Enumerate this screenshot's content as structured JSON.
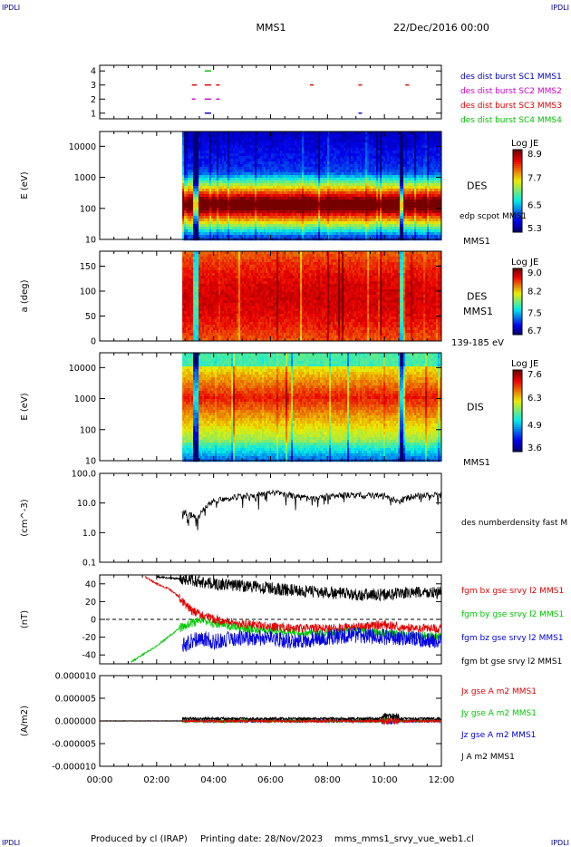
{
  "header": {
    "corner_left_top": "IPDLI",
    "corner_right_top": "IPDLI",
    "corner_left_bottom": "IPDLI",
    "corner_right_bottom": "IPDLI",
    "spacecraft": "MMS1",
    "date": "22/Dec/2016 00:00"
  },
  "footer": {
    "produced": "Produced by cl (IRAP)",
    "printing": "Printing date: 28/Nov/2023",
    "file": "mms_mms1_srvy_vue_web1.cl"
  },
  "chart_data": [
    {
      "type": "scatter",
      "id": "burst",
      "ylim": [
        0.6,
        4.4
      ],
      "yticks": [
        "1",
        "2",
        "3",
        "4"
      ],
      "legend": [
        {
          "name": "des dist burst SC1 MMS1",
          "color": "#0000c8"
        },
        {
          "name": "des dist burst SC2 MMS2",
          "color": "#d000d0"
        },
        {
          "name": "des dist burst SC3 MMS3",
          "color": "#e00000"
        },
        {
          "name": "des dist burst SC4 MMS4",
          "color": "#00c000"
        }
      ],
      "marks": [
        {
          "y": 4,
          "t": [
            3.75,
            3.85
          ],
          "color": "#00c000"
        },
        {
          "y": 3,
          "t": [
            3.3,
            3.35,
            3.75,
            3.85,
            4.15,
            7.45,
            9.15,
            10.8
          ],
          "color": "#e00000"
        },
        {
          "y": 2,
          "t": [
            3.3,
            3.75,
            3.85,
            4.15
          ],
          "color": "#d000d0"
        },
        {
          "y": 1,
          "t": [
            3.75,
            3.85,
            9.15
          ],
          "color": "#0000c8"
        }
      ]
    },
    {
      "type": "heatmap",
      "id": "des_energy",
      "ylabel": "E (eV)",
      "yscale": "log",
      "ylim": [
        10,
        30000
      ],
      "yticks": [
        "10",
        "100",
        "1000",
        "10000"
      ],
      "right_label": "DES",
      "right_sublabel": "edp scpot MMS1",
      "below_label": "MMS1",
      "colorbar": {
        "title": "Log JE",
        "ticks": [
          "8.9",
          "7.7",
          "6.5",
          "5.3"
        ]
      }
    },
    {
      "type": "heatmap",
      "id": "des_pitch",
      "ylabel": "a (deg)",
      "ylim": [
        0,
        180
      ],
      "yticks": [
        "0",
        "50",
        "100",
        "150"
      ],
      "right_label": "DES",
      "right_sublabel": "MMS1",
      "below_label": "139-185 eV",
      "colorbar": {
        "title": "Log JE",
        "ticks": [
          "9.0",
          "8.2",
          "7.5",
          "6.7"
        ]
      }
    },
    {
      "type": "heatmap",
      "id": "dis_energy",
      "ylabel": "E (eV)",
      "yscale": "log",
      "ylim": [
        10,
        30000
      ],
      "yticks": [
        "10",
        "100",
        "1000",
        "10000"
      ],
      "right_label": "DIS",
      "below_label": "MMS1",
      "colorbar": {
        "title": "Log JE",
        "ticks": [
          "7.6",
          "6.3",
          "4.9",
          "3.6"
        ]
      }
    },
    {
      "type": "line",
      "id": "density",
      "ylabel": "(cm^-3)",
      "yscale": "log",
      "ylim": [
        0.1,
        100
      ],
      "yticks": [
        "0.1",
        "1.0",
        "10.0",
        "100.0"
      ],
      "legend": [
        {
          "name": "des numberdensity fast M",
          "color": "#000000"
        }
      ],
      "series": [
        {
          "name": "des numberdensity fast M",
          "color": "#000000",
          "x": [
            2.9,
            3.2,
            3.4,
            3.6,
            4.0,
            4.5,
            5.0,
            5.5,
            6.0,
            6.5,
            7.0,
            7.5,
            8.0,
            8.5,
            9.0,
            9.5,
            10.0,
            10.5,
            11.0,
            11.5,
            12.0
          ],
          "y": [
            5,
            4,
            3,
            5,
            12,
            15,
            17,
            18,
            22,
            20,
            16,
            14,
            17,
            18,
            19,
            18,
            18,
            12,
            17,
            18,
            19
          ]
        }
      ]
    },
    {
      "type": "line",
      "id": "bfield",
      "ylabel": "(nT)",
      "ylim": [
        -50,
        50
      ],
      "yticks": [
        "-40",
        "-20",
        "0",
        "20",
        "40"
      ],
      "legend": [
        {
          "name": "fgm bx gse srvy l2 MMS1",
          "color": "#e00000"
        },
        {
          "name": "fgm by gse srvy l2 MMS1",
          "color": "#00c800"
        },
        {
          "name": "fgm bz gse srvy l2 MMS1",
          "color": "#0000e0"
        },
        {
          "name": "fgm bt gse srvy l2 MMS1",
          "color": "#000000"
        }
      ],
      "series": [
        {
          "name": "fgm bx gse srvy l2 MMS1",
          "color": "#e00000",
          "x": [
            1.6,
            2.0,
            2.4,
            2.8,
            3.2,
            3.6,
            4.0,
            5.0,
            6.0,
            7.0,
            8.0,
            9.0,
            10.0,
            11.0,
            12.0
          ],
          "y": [
            48,
            40,
            35,
            25,
            10,
            5,
            0,
            -5,
            -8,
            -10,
            -10,
            -8,
            -6,
            -10,
            -10
          ]
        },
        {
          "name": "fgm by gse srvy l2 MMS1",
          "color": "#00c800",
          "x": [
            1.1,
            1.5,
            2.0,
            2.4,
            2.8,
            3.2,
            3.6,
            4.0,
            5.0,
            6.0,
            7.0,
            8.0,
            9.0,
            10.0,
            11.0,
            12.0
          ],
          "y": [
            -48,
            -40,
            -30,
            -20,
            -10,
            -5,
            0,
            -5,
            -10,
            -12,
            -15,
            -15,
            -12,
            -15,
            -18,
            -20
          ]
        },
        {
          "name": "fgm bz gse srvy l2 MMS1",
          "color": "#0000e0",
          "x": [
            2.9,
            3.5,
            4.0,
            5.0,
            6.0,
            7.0,
            8.0,
            9.0,
            10.0,
            11.0,
            12.0
          ],
          "y": [
            -30,
            -20,
            -25,
            -20,
            -22,
            -25,
            -20,
            -18,
            -20,
            -22,
            -25
          ]
        },
        {
          "name": "fgm bt gse srvy l2 MMS1",
          "color": "#000000",
          "x": [
            2.0,
            3.0,
            4.0,
            5.0,
            6.0,
            7.0,
            8.0,
            9.0,
            10.0,
            11.0,
            12.0
          ],
          "y": [
            48,
            45,
            40,
            38,
            35,
            32,
            30,
            28,
            28,
            30,
            30
          ]
        }
      ]
    },
    {
      "type": "line",
      "id": "current",
      "ylabel": "(A/m2)",
      "ylim": [
        -1e-05,
        1e-05
      ],
      "yticks": [
        "-0.000010",
        "-0.000005",
        "0.000000",
        "0.000005",
        "0.000010"
      ],
      "legend": [
        {
          "name": "Jx gse A m2 MMS1",
          "color": "#e00000"
        },
        {
          "name": "Jy gse A m2 MMS1",
          "color": "#00c800"
        },
        {
          "name": "Jz gse A m2 MMS1",
          "color": "#0000e0"
        },
        {
          "name": "J A m2 MMS1",
          "color": "#000000"
        }
      ]
    }
  ],
  "xaxis": {
    "range": [
      0,
      12
    ],
    "ticks": [
      "00:00",
      "02:00",
      "04:00",
      "06:00",
      "08:00",
      "10:00",
      "12:00"
    ]
  }
}
